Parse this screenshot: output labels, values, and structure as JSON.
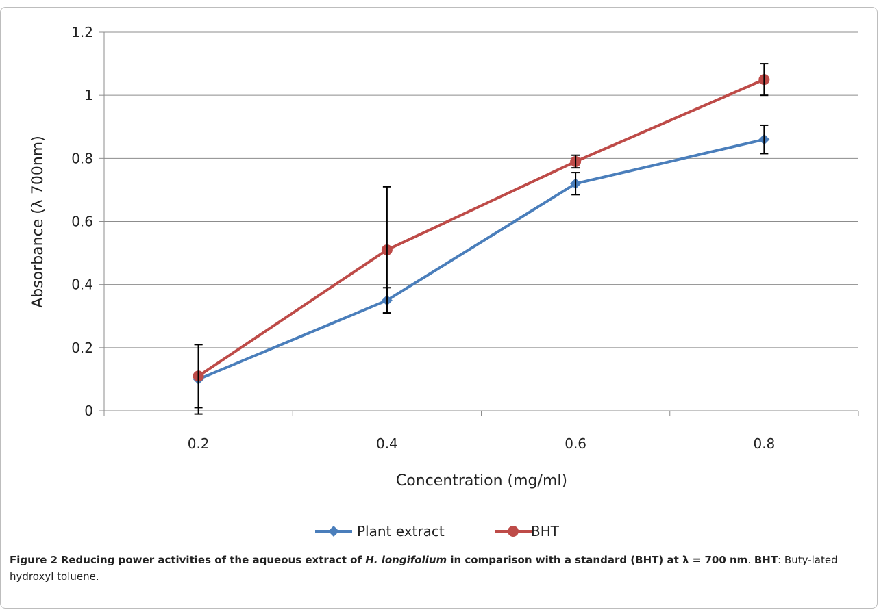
{
  "chart_data": {
    "type": "line",
    "categories": [
      "0.2",
      "0.4",
      "0.6",
      "0.8"
    ],
    "series": [
      {
        "name": "Plant extract",
        "color": "#4a7ebb",
        "marker": "diamond",
        "values": [
          0.1,
          0.35,
          0.72,
          0.86
        ],
        "error": [
          0.11,
          0.04,
          0.035,
          0.045
        ]
      },
      {
        "name": "BHT",
        "color": "#be4b48",
        "marker": "circle",
        "values": [
          0.11,
          0.51,
          0.79,
          1.05
        ],
        "error": [
          0.1,
          0.2,
          0.02,
          0.05
        ]
      }
    ],
    "xlabel": "Concentration (mg/ml)",
    "ylabel": "Absorbance (λ 700nm)",
    "ylim": [
      0,
      1.2
    ],
    "yticks": [
      "0",
      "0.2",
      "0.4",
      "0.6",
      "0.8",
      "1",
      "1.2"
    ],
    "grid": "horizontal",
    "legend_position": "bottom"
  },
  "caption": {
    "label": "Figure 2",
    "text_bold_1": "Reducing power activities of the aqueous extract of ",
    "species": "H. longifolium",
    "text_bold_2": " in comparison with a standard (BHT) at λ = 700 nm",
    "sep": ". ",
    "abbr": "BHT",
    "abbr_def": ": Buty-lated hydroxyl toluene."
  }
}
